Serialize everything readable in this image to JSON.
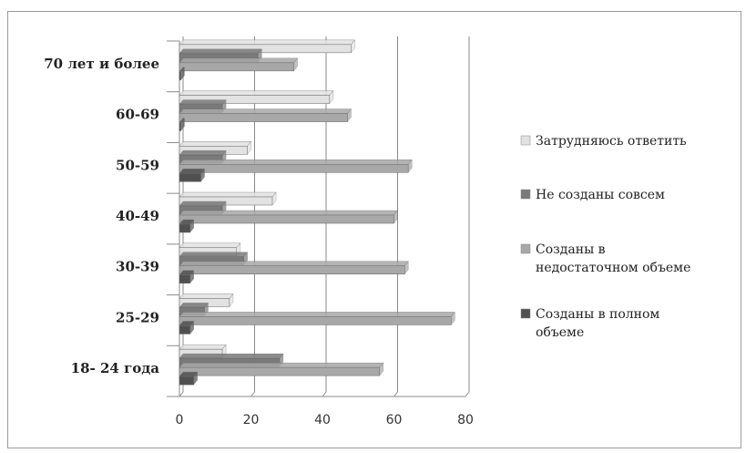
{
  "chart_data": {
    "type": "bar",
    "orientation": "horizontal",
    "style": "3d-clustered",
    "categories": [
      "18- 24 года",
      "25-29",
      "30-39",
      "40-49",
      "50-59",
      "60-69",
      "70 лет и более"
    ],
    "series": [
      {
        "name": "Созданы в полном объеме",
        "color": "#505050",
        "values": [
          4,
          3,
          3,
          3,
          6,
          0,
          0
        ]
      },
      {
        "name": "Созданы в недостаточном объеме",
        "color": "#a8a8a8",
        "values": [
          56,
          76,
          63,
          60,
          64,
          47,
          32
        ]
      },
      {
        "name": "Не созданы совсем",
        "color": "#7a7a7a",
        "values": [
          28,
          7,
          18,
          12,
          12,
          12,
          22
        ]
      },
      {
        "name": "Затрудняюсь ответить",
        "color": "#e2e2e2",
        "values": [
          12,
          14,
          16,
          26,
          19,
          42,
          48
        ]
      }
    ],
    "xlim": [
      0,
      80
    ],
    "xticks": [
      "0",
      "20",
      "40",
      "60",
      "80"
    ],
    "grid": true,
    "legend_position": "right",
    "legend_order": [
      "Затрудняюсь ответить",
      "Не созданы совсем",
      "Созданы в недостаточном объеме",
      "Созданы в полном объеме"
    ],
    "legend_lines": [
      [
        "Затрудняюсь ответить"
      ],
      [
        "Не созданы совсем"
      ],
      [
        "Созданы в",
        "недостаточном объеме"
      ],
      [
        "Созданы в полном",
        "объеме"
      ]
    ]
  }
}
